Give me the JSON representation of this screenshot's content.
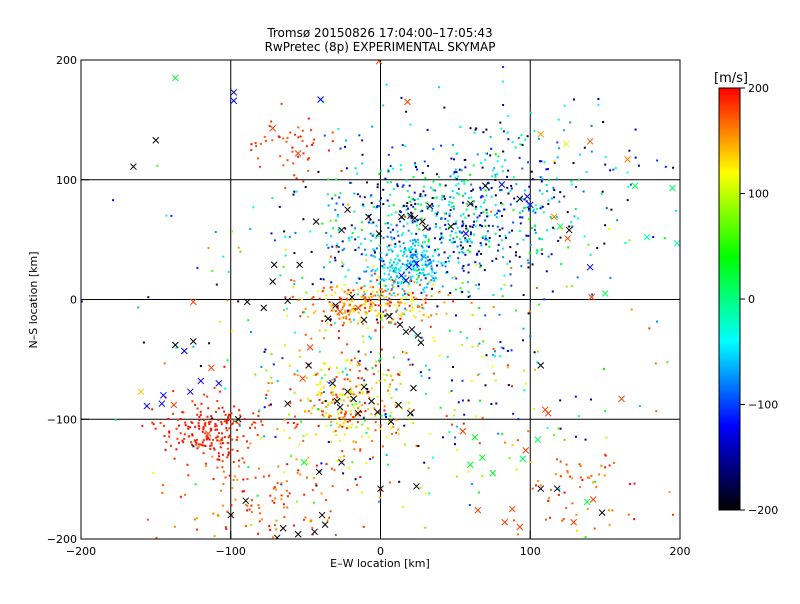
{
  "chart_data": {
    "type": "scatter",
    "title": "Tromsø 20150826 17:04:00–17:05:43",
    "subtitle": "RwPretec (8p) EXPERIMENTAL SKYMAP",
    "xlabel": "E–W location [km]",
    "ylabel": "N–S location [km]",
    "xlim": [
      -200,
      200
    ],
    "ylim": [
      -200,
      200
    ],
    "x_ticks": [
      -200,
      -100,
      0,
      100,
      200
    ],
    "y_ticks": [
      -200,
      -100,
      0,
      100,
      200
    ],
    "grid": true,
    "colorbar": {
      "label": "[m/s]",
      "range": [
        -200,
        200
      ],
      "ticks": [
        200,
        100,
        0,
        -100,
        -200
      ],
      "colormap": [
        "#000000",
        "#0000ff",
        "#00ffff",
        "#00ff00",
        "#ffff00",
        "#ff0000"
      ]
    },
    "series": [
      {
        "marker": "x",
        "points": [
          [
            -137,
            185,
            20
          ],
          [
            -98,
            173,
            -150
          ],
          [
            -98,
            166,
            -120
          ],
          [
            -150,
            133,
            -200
          ],
          [
            -165,
            111,
            -200
          ],
          [
            -40,
            167,
            -120
          ],
          [
            -1,
            199,
            180
          ],
          [
            18,
            165,
            180
          ],
          [
            107,
            138,
            150
          ],
          [
            124,
            130,
            110
          ],
          [
            140,
            132,
            170
          ],
          [
            165,
            117,
            160
          ],
          [
            170,
            95,
            10
          ],
          [
            195,
            93,
            10
          ],
          [
            178,
            52,
            -20
          ],
          [
            198,
            47,
            -10
          ],
          [
            -71,
            29,
            -200
          ],
          [
            -72,
            15,
            -200
          ],
          [
            -78,
            -7,
            -200
          ],
          [
            -89,
            -2,
            -200
          ],
          [
            -125,
            -2,
            180
          ],
          [
            -137,
            -38,
            -200
          ],
          [
            -125,
            -35,
            -200
          ],
          [
            -160,
            -77,
            140
          ],
          [
            -146,
            -87,
            -120
          ],
          [
            -145,
            -80,
            -120
          ],
          [
            -138,
            -88,
            180
          ],
          [
            -131,
            -43,
            -120
          ],
          [
            -120,
            -68,
            -120
          ],
          [
            -127,
            -77,
            -120
          ],
          [
            -156,
            -89,
            -120
          ],
          [
            -108,
            -70,
            -120
          ],
          [
            -113,
            -57,
            180
          ],
          [
            -47,
            -40,
            180
          ],
          [
            -48,
            -55,
            -200
          ],
          [
            -52,
            -66,
            180
          ],
          [
            -62,
            -87,
            -200
          ],
          [
            -95,
            -100,
            -200
          ],
          [
            -115,
            -112,
            180
          ],
          [
            -37,
            -188,
            -200
          ],
          [
            -39,
            -180,
            -200
          ],
          [
            -44,
            -194,
            -200
          ],
          [
            -55,
            -196,
            -200
          ],
          [
            -65,
            -191,
            -200
          ],
          [
            -69,
            -199,
            -200
          ],
          [
            -90,
            -168,
            -200
          ],
          [
            -100,
            -180,
            -200
          ],
          [
            -51,
            -136,
            30
          ],
          [
            -26,
            -136,
            -200
          ],
          [
            -41,
            -144,
            -200
          ],
          [
            0,
            -158,
            -200
          ],
          [
            24,
            -156,
            -200
          ],
          [
            65,
            -176,
            180
          ],
          [
            88,
            -175,
            180
          ],
          [
            107,
            -158,
            -200
          ],
          [
            118,
            -158,
            -200
          ],
          [
            148,
            -178,
            -200
          ],
          [
            129,
            -186,
            180
          ],
          [
            55,
            -110,
            180
          ],
          [
            60,
            -138,
            30
          ],
          [
            63,
            -115,
            30
          ],
          [
            68,
            -132,
            30
          ],
          [
            75,
            -145,
            30
          ],
          [
            83,
            -186,
            180
          ],
          [
            93,
            -190,
            180
          ],
          [
            95,
            -133,
            10
          ],
          [
            97,
            -126,
            180
          ],
          [
            105,
            -117,
            10
          ],
          [
            138,
            -169,
            20
          ],
          [
            142,
            -167,
            180
          ],
          [
            161,
            -83,
            180
          ],
          [
            112,
            -95,
            180
          ],
          [
            110,
            -92,
            180
          ],
          [
            107,
            -55,
            -200
          ],
          [
            30,
            60,
            -200
          ],
          [
            33,
            78,
            -200
          ],
          [
            47,
            61,
            -200
          ],
          [
            57,
            55,
            -120
          ],
          [
            60,
            80,
            -200
          ],
          [
            70,
            95,
            -200
          ],
          [
            81,
            96,
            -120
          ],
          [
            93,
            84,
            -200
          ],
          [
            98,
            86,
            -120
          ],
          [
            100,
            79,
            -120
          ],
          [
            116,
            69,
            160
          ],
          [
            120,
            61,
            10
          ],
          [
            125,
            51,
            180
          ],
          [
            126,
            58,
            -200
          ],
          [
            140,
            27,
            -120
          ],
          [
            150,
            5,
            10
          ],
          [
            141,
            2,
            180
          ],
          [
            -26,
            58,
            -200
          ],
          [
            -22,
            75,
            -200
          ],
          [
            -8,
            69,
            -200
          ],
          [
            -1,
            55,
            -200
          ],
          [
            14,
            69,
            -200
          ],
          [
            20,
            70,
            -200
          ],
          [
            23,
            68,
            -200
          ],
          [
            28,
            65,
            -200
          ],
          [
            17,
            16,
            -120
          ],
          [
            14,
            20,
            -120
          ],
          [
            19,
            27,
            -120
          ],
          [
            24,
            30,
            -120
          ],
          [
            -35,
            -16,
            -200
          ],
          [
            -30,
            -5,
            -200
          ],
          [
            -27,
            -10,
            180
          ],
          [
            -19,
            2,
            -200
          ],
          [
            -15,
            -7,
            180
          ],
          [
            -11,
            -17,
            -200
          ],
          [
            6,
            -14,
            -200
          ],
          [
            13,
            -21,
            -200
          ],
          [
            17,
            -27,
            -200
          ],
          [
            21,
            -25,
            -200
          ],
          [
            25,
            -30,
            -200
          ],
          [
            27,
            -36,
            -200
          ],
          [
            -32,
            -70,
            -200
          ],
          [
            -29,
            -85,
            -200
          ],
          [
            -27,
            -90,
            -200
          ],
          [
            -22,
            -77,
            -200
          ],
          [
            -18,
            -83,
            -200
          ],
          [
            -15,
            -95,
            -200
          ],
          [
            -11,
            -73,
            -200
          ],
          [
            -6,
            -85,
            -200
          ],
          [
            -2,
            -94,
            -200
          ],
          [
            7,
            -102,
            -200
          ],
          [
            12,
            -88,
            -200
          ],
          [
            20,
            -95,
            -200
          ],
          [
            22,
            -74,
            -200
          ],
          [
            -43,
            65,
            -200
          ],
          [
            -54,
            29,
            -200
          ],
          [
            -62,
            -1,
            -200
          ],
          [
            -55,
            122,
            180
          ],
          [
            -72,
            143,
            180
          ]
        ]
      },
      {
        "marker": "dot",
        "clusters": [
          {
            "cx": 45,
            "cy": 65,
            "sx": 45,
            "sy": 25,
            "n": 600,
            "vmin": -200,
            "vmax": 40
          },
          {
            "cx": 18,
            "cy": 28,
            "sx": 14,
            "sy": 14,
            "n": 250,
            "vmin": -90,
            "vmax": -20
          },
          {
            "cx": -8,
            "cy": -3,
            "sx": 25,
            "sy": 10,
            "n": 260,
            "vmin": 110,
            "vmax": 200
          },
          {
            "cx": -22,
            "cy": -82,
            "sx": 22,
            "sy": 20,
            "n": 260,
            "vmin": 80,
            "vmax": 200
          },
          {
            "cx": -115,
            "cy": -110,
            "sx": 17,
            "sy": 15,
            "n": 200,
            "vmin": 180,
            "vmax": 200
          },
          {
            "cx": 10,
            "cy": -50,
            "sx": 80,
            "sy": 70,
            "n": 420,
            "vmin": -200,
            "vmax": 200
          },
          {
            "cx": -70,
            "cy": -160,
            "sx": 30,
            "sy": 25,
            "n": 130,
            "vmin": 150,
            "vmax": 200
          },
          {
            "cx": 80,
            "cy": 120,
            "sx": 55,
            "sy": 30,
            "n": 150,
            "vmin": -200,
            "vmax": 0
          },
          {
            "cx": -60,
            "cy": 130,
            "sx": 15,
            "sy": 18,
            "n": 50,
            "vmin": 170,
            "vmax": 200
          },
          {
            "cx": 130,
            "cy": -160,
            "sx": 20,
            "sy": 20,
            "n": 60,
            "vmin": 150,
            "vmax": 200
          }
        ]
      }
    ]
  }
}
